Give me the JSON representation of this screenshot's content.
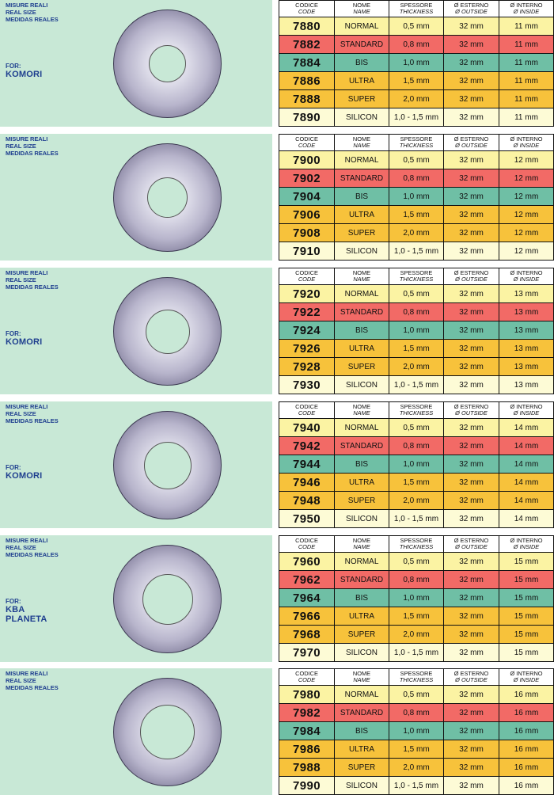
{
  "size_labels": [
    "MISURE REALI",
    "REAL SIZE",
    "MEDIDAS REALES"
  ],
  "headers": {
    "code": {
      "it": "CODICE",
      "en": "CODE"
    },
    "name": {
      "it": "NOME",
      "en": "NAME"
    },
    "thickness": {
      "it": "SPESSORE",
      "en": "THICKNESS"
    },
    "outside": {
      "it": "Ø ESTERNO",
      "en": "Ø OUTSIDE"
    },
    "inside": {
      "it": "Ø INTERNO",
      "en": "Ø INSIDE"
    }
  },
  "sections": [
    {
      "for_label": "FOR:",
      "machine": [
        "KOMORI"
      ],
      "inner_diameter_mm": 11,
      "rows": [
        {
          "code": "7880",
          "name": "NORMAL",
          "thickness": "0,5 mm",
          "outside": "32 mm",
          "inside": "11 mm",
          "color": "#fbf3a3"
        },
        {
          "code": "7882",
          "name": "STANDARD",
          "thickness": "0,8 mm",
          "outside": "32 mm",
          "inside": "11 mm",
          "color": "#f26a66"
        },
        {
          "code": "7884",
          "name": "BIS",
          "thickness": "1,0 mm",
          "outside": "32 mm",
          "inside": "11 mm",
          "color": "#6fbfa5"
        },
        {
          "code": "7886",
          "name": "ULTRA",
          "thickness": "1,5 mm",
          "outside": "32 mm",
          "inside": "11 mm",
          "color": "#f7c23b"
        },
        {
          "code": "7888",
          "name": "SUPER",
          "thickness": "2,0 mm",
          "outside": "32 mm",
          "inside": "11 mm",
          "color": "#f7c23b"
        },
        {
          "code": "7890",
          "name": "SILICON",
          "thickness": "1,0 - 1,5 mm",
          "outside": "32 mm",
          "inside": "11 mm",
          "color": "#fdfbd6"
        }
      ]
    },
    {
      "for_label": "",
      "machine": [],
      "inner_diameter_mm": 12,
      "rows": [
        {
          "code": "7900",
          "name": "NORMAL",
          "thickness": "0,5 mm",
          "outside": "32 mm",
          "inside": "12 mm",
          "color": "#fbf3a3"
        },
        {
          "code": "7902",
          "name": "STANDARD",
          "thickness": "0,8 mm",
          "outside": "32 mm",
          "inside": "12 mm",
          "color": "#f26a66"
        },
        {
          "code": "7904",
          "name": "BIS",
          "thickness": "1,0 mm",
          "outside": "32 mm",
          "inside": "12 mm",
          "color": "#6fbfa5"
        },
        {
          "code": "7906",
          "name": "ULTRA",
          "thickness": "1,5 mm",
          "outside": "32 mm",
          "inside": "12 mm",
          "color": "#f7c23b"
        },
        {
          "code": "7908",
          "name": "SUPER",
          "thickness": "2,0 mm",
          "outside": "32 mm",
          "inside": "12 mm",
          "color": "#f7c23b"
        },
        {
          "code": "7910",
          "name": "SILICON",
          "thickness": "1,0 - 1,5 mm",
          "outside": "32 mm",
          "inside": "12 mm",
          "color": "#fdfbd6"
        }
      ]
    },
    {
      "for_label": "FOR:",
      "machine": [
        "KOMORI"
      ],
      "inner_diameter_mm": 13,
      "rows": [
        {
          "code": "7920",
          "name": "NORMAL",
          "thickness": "0,5 mm",
          "outside": "32 mm",
          "inside": "13 mm",
          "color": "#fbf3a3"
        },
        {
          "code": "7922",
          "name": "STANDARD",
          "thickness": "0,8 mm",
          "outside": "32 mm",
          "inside": "13 mm",
          "color": "#f26a66"
        },
        {
          "code": "7924",
          "name": "BIS",
          "thickness": "1,0 mm",
          "outside": "32 mm",
          "inside": "13 mm",
          "color": "#6fbfa5"
        },
        {
          "code": "7926",
          "name": "ULTRA",
          "thickness": "1,5 mm",
          "outside": "32 mm",
          "inside": "13 mm",
          "color": "#f7c23b"
        },
        {
          "code": "7928",
          "name": "SUPER",
          "thickness": "2,0 mm",
          "outside": "32 mm",
          "inside": "13 mm",
          "color": "#f7c23b"
        },
        {
          "code": "7930",
          "name": "SILICON",
          "thickness": "1,0 - 1,5 mm",
          "outside": "32 mm",
          "inside": "13 mm",
          "color": "#fdfbd6"
        }
      ]
    },
    {
      "for_label": "FOR:",
      "machine": [
        "KOMORI"
      ],
      "inner_diameter_mm": 14,
      "rows": [
        {
          "code": "7940",
          "name": "NORMAL",
          "thickness": "0,5 mm",
          "outside": "32 mm",
          "inside": "14 mm",
          "color": "#fbf3a3"
        },
        {
          "code": "7942",
          "name": "STANDARD",
          "thickness": "0,8 mm",
          "outside": "32 mm",
          "inside": "14 mm",
          "color": "#f26a66"
        },
        {
          "code": "7944",
          "name": "BIS",
          "thickness": "1,0 mm",
          "outside": "32 mm",
          "inside": "14 mm",
          "color": "#6fbfa5"
        },
        {
          "code": "7946",
          "name": "ULTRA",
          "thickness": "1,5 mm",
          "outside": "32 mm",
          "inside": "14 mm",
          "color": "#f7c23b"
        },
        {
          "code": "7948",
          "name": "SUPER",
          "thickness": "2,0 mm",
          "outside": "32 mm",
          "inside": "14 mm",
          "color": "#f7c23b"
        },
        {
          "code": "7950",
          "name": "SILICON",
          "thickness": "1,0 - 1,5 mm",
          "outside": "32 mm",
          "inside": "14 mm",
          "color": "#fdfbd6"
        }
      ]
    },
    {
      "for_label": "FOR:",
      "machine": [
        "KBA",
        "PLANETA"
      ],
      "inner_diameter_mm": 15,
      "rows": [
        {
          "code": "7960",
          "name": "NORMAL",
          "thickness": "0,5 mm",
          "outside": "32 mm",
          "inside": "15 mm",
          "color": "#fbf3a3"
        },
        {
          "code": "7962",
          "name": "STANDARD",
          "thickness": "0,8 mm",
          "outside": "32 mm",
          "inside": "15 mm",
          "color": "#f26a66"
        },
        {
          "code": "7964",
          "name": "BIS",
          "thickness": "1,0 mm",
          "outside": "32 mm",
          "inside": "15 mm",
          "color": "#6fbfa5"
        },
        {
          "code": "7966",
          "name": "ULTRA",
          "thickness": "1,5 mm",
          "outside": "32 mm",
          "inside": "15 mm",
          "color": "#f7c23b"
        },
        {
          "code": "7968",
          "name": "SUPER",
          "thickness": "2,0 mm",
          "outside": "32 mm",
          "inside": "15 mm",
          "color": "#f7c23b"
        },
        {
          "code": "7970",
          "name": "SILICON",
          "thickness": "1,0 - 1,5 mm",
          "outside": "32 mm",
          "inside": "15 mm",
          "color": "#fdfbd6"
        }
      ]
    },
    {
      "for_label": "",
      "machine": [],
      "inner_diameter_mm": 16,
      "rows": [
        {
          "code": "7980",
          "name": "NORMAL",
          "thickness": "0,5 mm",
          "outside": "32 mm",
          "inside": "16 mm",
          "color": "#fbf3a3"
        },
        {
          "code": "7982",
          "name": "STANDARD",
          "thickness": "0,8 mm",
          "outside": "32 mm",
          "inside": "16 mm",
          "color": "#f26a66"
        },
        {
          "code": "7984",
          "name": "BIS",
          "thickness": "1,0 mm",
          "outside": "32 mm",
          "inside": "16 mm",
          "color": "#6fbfa5"
        },
        {
          "code": "7986",
          "name": "ULTRA",
          "thickness": "1,5 mm",
          "outside": "32 mm",
          "inside": "16 mm",
          "color": "#f7c23b"
        },
        {
          "code": "7988",
          "name": "SUPER",
          "thickness": "2,0 mm",
          "outside": "32 mm",
          "inside": "16 mm",
          "color": "#f7c23b"
        },
        {
          "code": "7990",
          "name": "SILICON",
          "thickness": "1,0 - 1,5 mm",
          "outside": "32 mm",
          "inside": "16 mm",
          "color": "#fdfbd6"
        }
      ]
    }
  ]
}
